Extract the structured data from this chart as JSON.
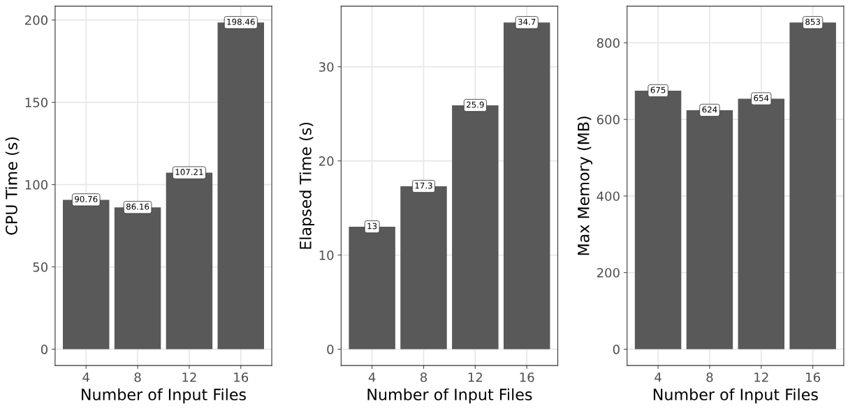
{
  "chart_data": [
    {
      "type": "bar",
      "xlabel": "Number of Input Files",
      "ylabel": "CPU Time (s)",
      "categories": [
        "4",
        "8",
        "12",
        "16"
      ],
      "values": [
        90.76,
        86.16,
        107.21,
        198.46
      ],
      "color": "#595959",
      "ylim": [
        -9.92,
        208.38
      ],
      "yticks": [
        0,
        50,
        100,
        150,
        200
      ],
      "grid": true,
      "data_labels": true
    },
    {
      "type": "bar",
      "xlabel": "Number of Input Files",
      "ylabel": "Elapsed Time (s)",
      "categories": [
        "4",
        "8",
        "12",
        "16"
      ],
      "values": [
        13,
        17.3,
        25.9,
        34.7
      ],
      "color": "#595959",
      "ylim": [
        -1.735,
        36.435
      ],
      "yticks": [
        0,
        10,
        20,
        30
      ],
      "grid": true,
      "data_labels": true
    },
    {
      "type": "bar",
      "xlabel": "Number of Input Files",
      "ylabel": "Max Memory (MB)",
      "categories": [
        "4",
        "8",
        "12",
        "16"
      ],
      "values": [
        675,
        624,
        654,
        853
      ],
      "color": "#595959",
      "ylim": [
        -42.65,
        895.65
      ],
      "yticks": [
        0,
        200,
        400,
        600,
        800
      ],
      "grid": true,
      "data_labels": true
    }
  ]
}
